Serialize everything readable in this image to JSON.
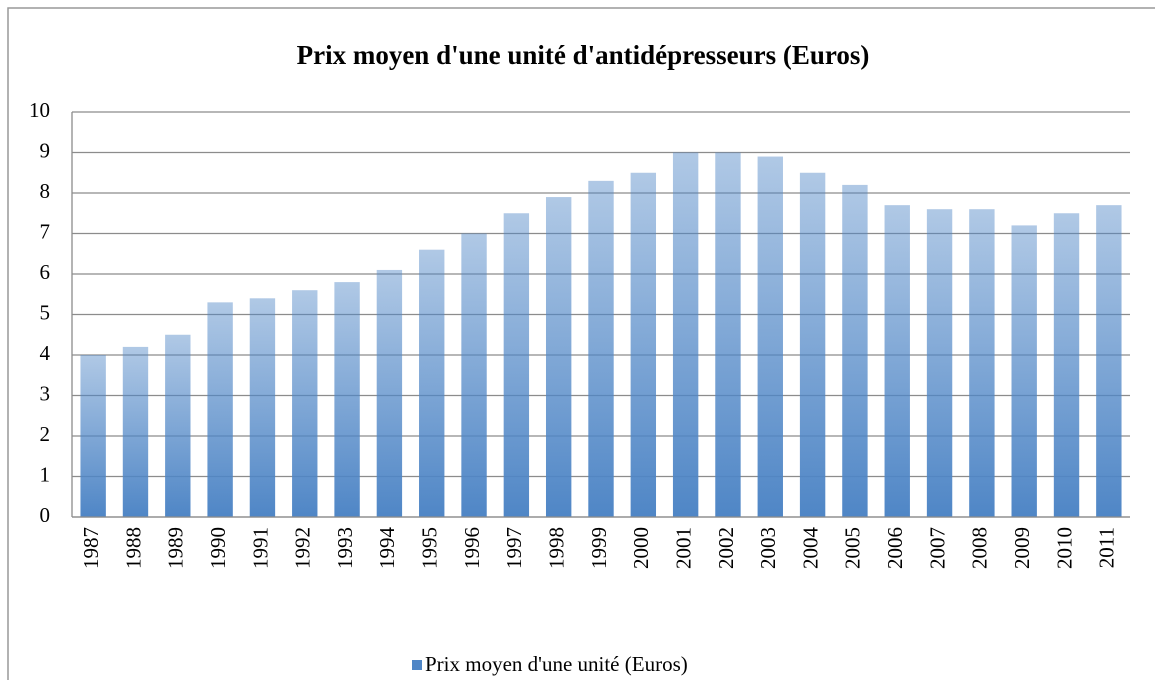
{
  "chart_data": {
    "type": "bar",
    "title": "Prix moyen d'une unité d'antidépresseurs (Euros)",
    "categories": [
      "1987",
      "1988",
      "1989",
      "1990",
      "1991",
      "1992",
      "1993",
      "1994",
      "1995",
      "1996",
      "1997",
      "1998",
      "1999",
      "2000",
      "2001",
      "2002",
      "2003",
      "2004",
      "2005",
      "2006",
      "2007",
      "2008",
      "2009",
      "2010",
      "2011"
    ],
    "series": [
      {
        "name": "Prix moyen d'une unité (Euros)",
        "color": "#4f86c6",
        "values": [
          4.0,
          4.2,
          4.5,
          5.3,
          5.4,
          5.6,
          5.8,
          6.1,
          6.6,
          7.0,
          7.5,
          7.9,
          8.3,
          8.5,
          9.0,
          9.0,
          8.9,
          8.5,
          8.2,
          7.7,
          7.6,
          7.6,
          7.2,
          7.5,
          7.7
        ]
      }
    ],
    "ylim": [
      0,
      10
    ],
    "yticks": [
      0,
      1,
      2,
      3,
      4,
      5,
      6,
      7,
      8,
      9,
      10
    ],
    "grid": true,
    "legend": "bottom"
  }
}
